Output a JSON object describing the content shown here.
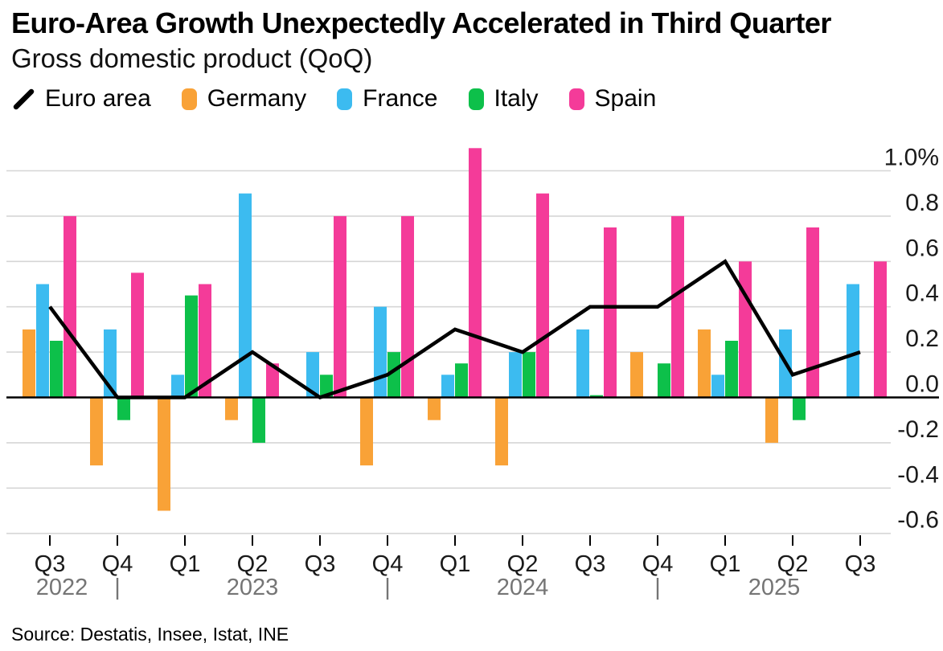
{
  "page": {
    "title": "Euro-Area Growth Unexpectedly Accelerated in Third Quarter",
    "subtitle": "Gross domestic product (QoQ)",
    "source": "Source: Destatis, Insee, Istat, INE"
  },
  "chart_data": {
    "type": "bar",
    "title": "Euro-Area Growth Unexpectedly Accelerated in Third Quarter",
    "subtitle": "Gross domestic product (QoQ)",
    "source": "Source: Destatis, Insee, Istat, INE",
    "categories": [
      "Q3 2022",
      "Q4 2022",
      "Q1 2023",
      "Q2 2023",
      "Q3 2023",
      "Q4 2023",
      "Q1 2024",
      "Q2 2024",
      "Q3 2024",
      "Q4 2024",
      "Q1 2025",
      "Q2 2025",
      "Q3 2025"
    ],
    "x_tick_labels": [
      "Q3",
      "Q4",
      "Q1",
      "Q2",
      "Q3",
      "Q4",
      "Q1",
      "Q2",
      "Q3",
      "Q4",
      "Q1",
      "Q2",
      "Q3"
    ],
    "year_row": {
      "labels": [
        "2022",
        "2023",
        "2024",
        "2025"
      ],
      "separator": "|"
    },
    "series": [
      {
        "name": "Euro area",
        "type": "line",
        "color": "#000000",
        "values": [
          0.4,
          0.0,
          0.0,
          0.2,
          0.0,
          0.1,
          0.3,
          0.2,
          0.4,
          0.4,
          0.6,
          0.1,
          0.2
        ]
      },
      {
        "name": "Germany",
        "type": "bar",
        "color": "#F9A237",
        "values": [
          0.3,
          -0.3,
          -0.5,
          -0.1,
          0.0,
          -0.3,
          -0.1,
          -0.3,
          0.0,
          0.2,
          0.3,
          -0.2,
          0.0
        ]
      },
      {
        "name": "France",
        "type": "bar",
        "color": "#3CBBF0",
        "values": [
          0.5,
          0.3,
          0.1,
          0.9,
          0.2,
          0.4,
          0.1,
          0.2,
          0.3,
          0.0,
          0.1,
          0.3,
          0.5
        ]
      },
      {
        "name": "Italy",
        "type": "bar",
        "color": "#0DC04A",
        "values": [
          0.25,
          -0.1,
          0.45,
          -0.2,
          0.1,
          0.2,
          0.15,
          0.2,
          0.01,
          0.15,
          0.25,
          -0.1,
          0.0
        ]
      },
      {
        "name": "Spain",
        "type": "bar",
        "color": "#F43B99",
        "values": [
          0.8,
          0.55,
          0.5,
          0.15,
          0.8,
          0.8,
          1.1,
          0.9,
          0.75,
          0.8,
          0.6,
          0.75,
          0.6
        ]
      }
    ],
    "ylim": [
      -0.72,
      1.15
    ],
    "yticks": [
      1.0,
      0.8,
      0.6,
      0.4,
      0.2,
      0.0,
      -0.2,
      -0.4,
      -0.6
    ],
    "ytick_labels": [
      "1.0%",
      "0.8",
      "0.6",
      "0.4",
      "0.2",
      "0.0",
      "-0.2",
      "-0.4",
      "-0.6"
    ],
    "grid": true,
    "legend_position": "top-left",
    "colors": {
      "grid": "#d6d6d6",
      "zero_axis": "#000000",
      "tick_label": "#1a1a1a",
      "year_label": "#757575"
    }
  }
}
